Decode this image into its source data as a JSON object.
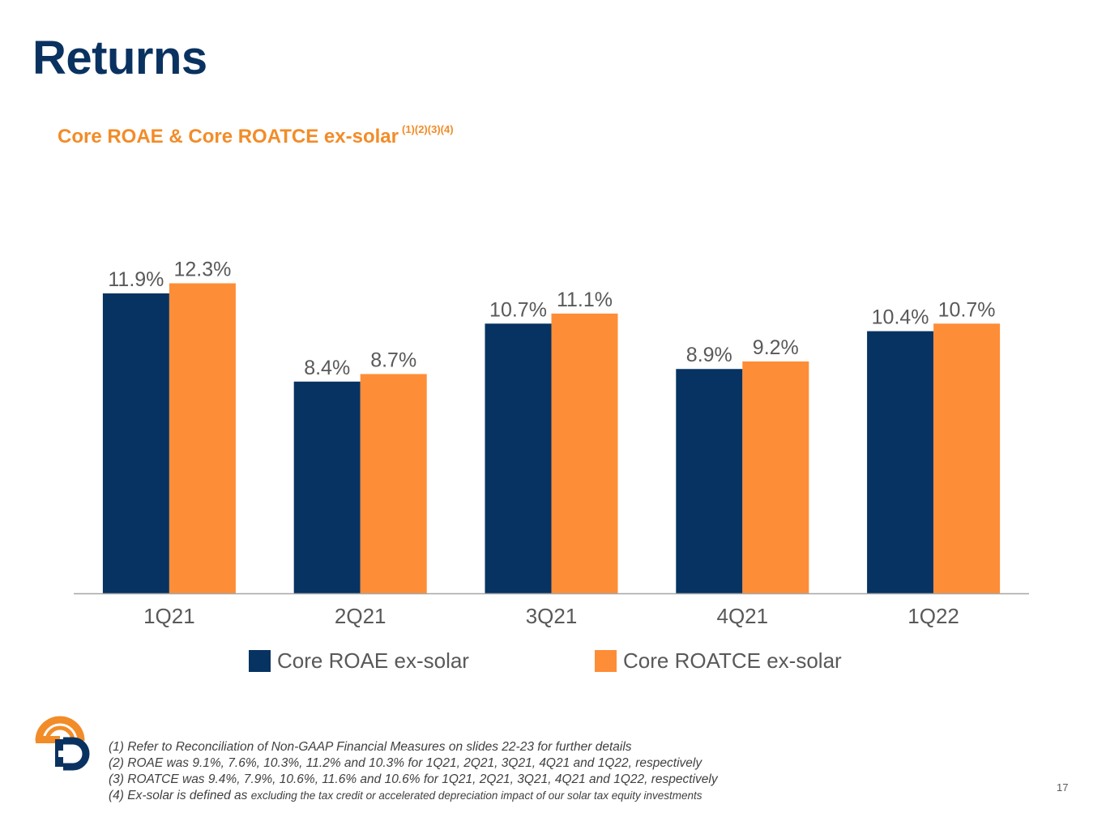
{
  "slide": {
    "title": "Returns",
    "subtitle": "Core ROAE & Core ROATCE ex-solar",
    "subtitle_refs": "(1)(2)(3)(4)",
    "page_number": "17",
    "footnotes": [
      "(1) Refer to Reconciliation of Non-GAAP Financial Measures on slides 22-23 for further details",
      "(2) ROAE was 9.1%, 7.6%, 10.3%, 11.2% and 10.3% for 1Q21, 2Q21, 3Q21, 4Q21 and 1Q22, respectively",
      "(3) ROATCE was 9.4%, 7.9%, 10.6%, 11.6% and 10.6% for 1Q21, 2Q21, 3Q21, 4Q21 and 1Q22, respectively"
    ],
    "footnote4_lead": "(4) Ex-solar is defined as",
    "footnote4_rest": "excluding the tax credit or accelerated depreciation impact of our solar tax equity investments"
  },
  "chart_data": {
    "type": "bar",
    "categories": [
      "1Q21",
      "2Q21",
      "3Q21",
      "4Q21",
      "1Q22"
    ],
    "series": [
      {
        "name": "Core ROAE ex-solar",
        "values": [
          11.9,
          8.4,
          10.7,
          8.9,
          10.4
        ],
        "labels": [
          "11.9%",
          "8.4%",
          "10.7%",
          "8.9%",
          "10.4%"
        ],
        "color": "#063361"
      },
      {
        "name": "Core ROATCE ex-solar",
        "values": [
          12.3,
          8.7,
          11.1,
          9.2,
          10.7
        ],
        "labels": [
          "12.3%",
          "8.7%",
          "11.1%",
          "9.2%",
          "10.7%"
        ],
        "color": "#fe8d37"
      }
    ],
    "ylim": [
      0,
      15.5
    ],
    "legend": "bottom",
    "grid": false
  }
}
